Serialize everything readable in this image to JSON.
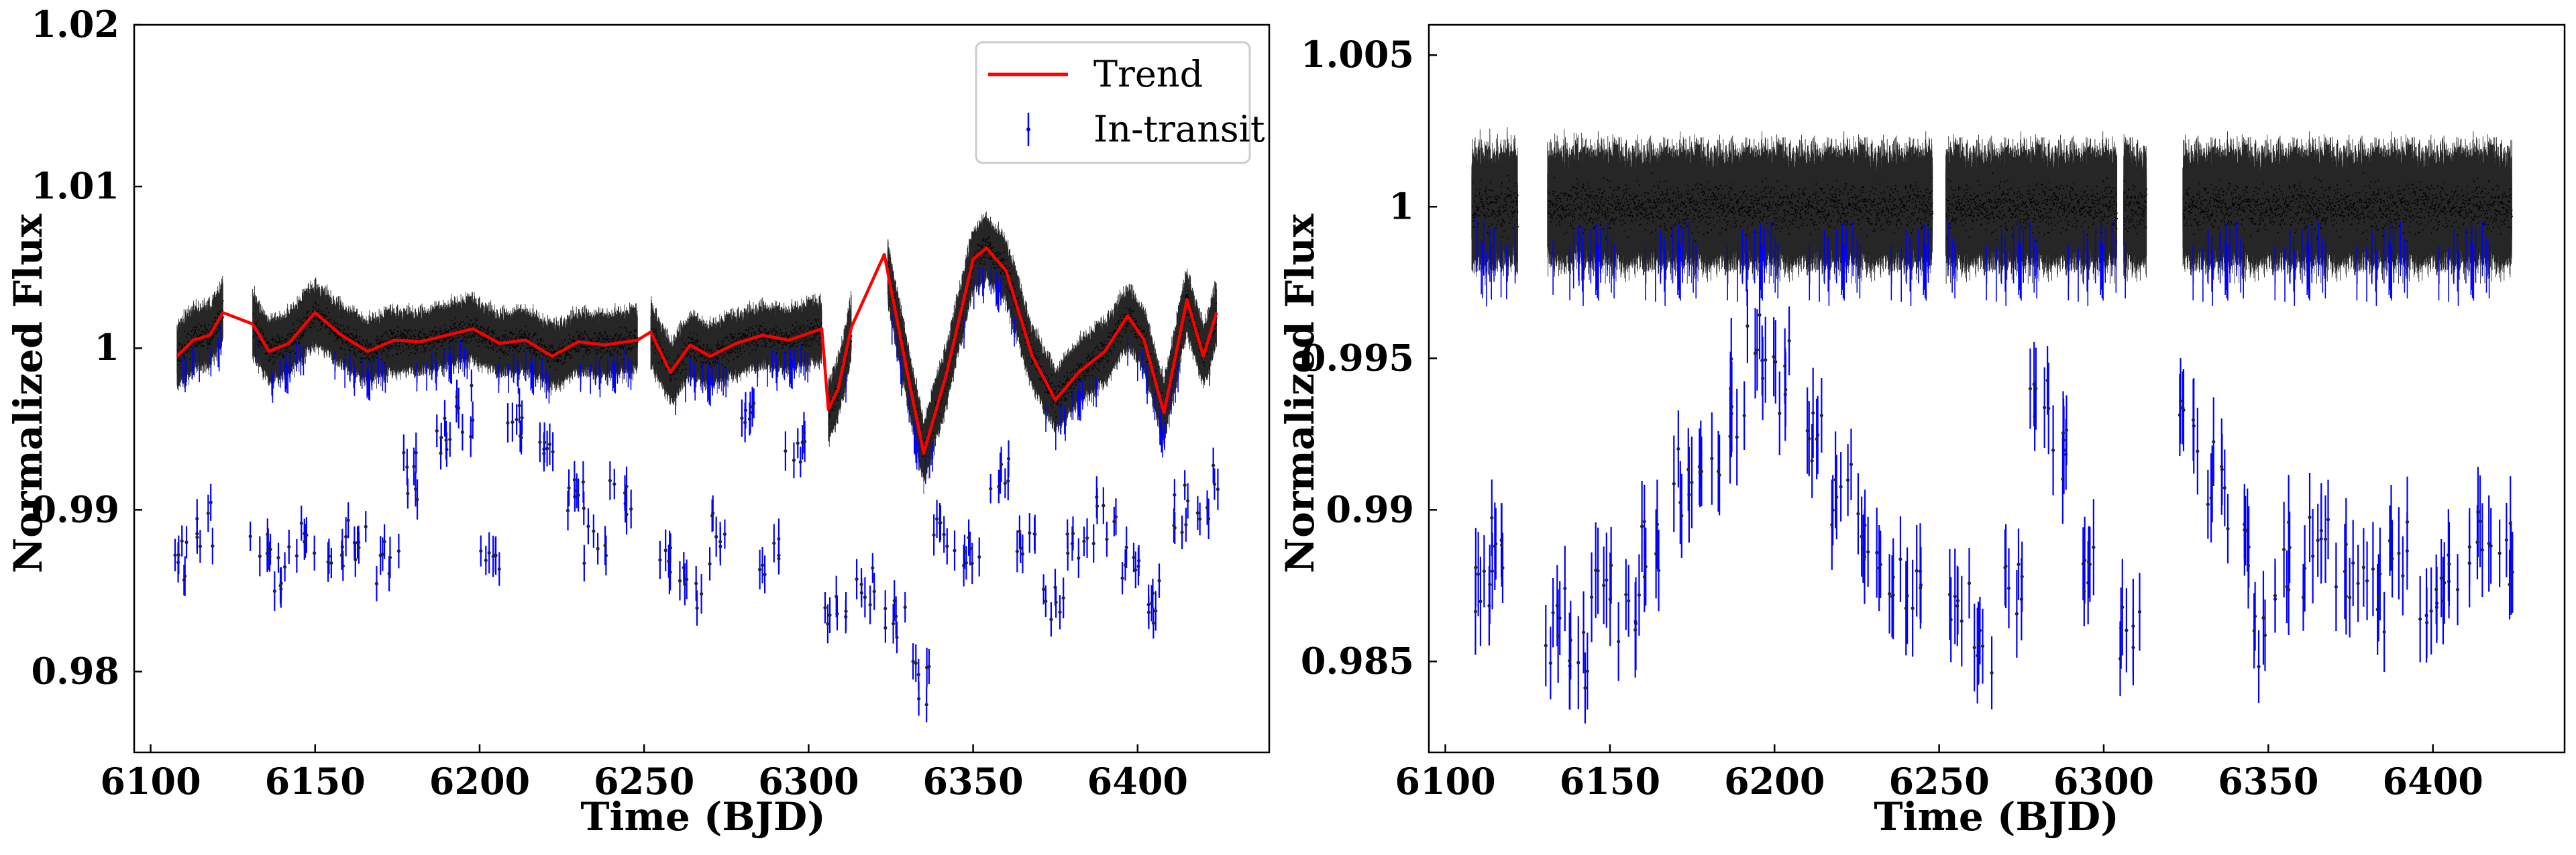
{
  "chart_data": [
    {
      "type": "scatter",
      "xlabel": "Time (BJD)",
      "ylabel": "Normalized Flux",
      "xlim": [
        6095,
        6440
      ],
      "ylim": [
        0.975,
        1.02
      ],
      "xticks": [
        6100,
        6150,
        6200,
        6250,
        6300,
        6350,
        6400
      ],
      "xtick_labels": [
        "6100",
        "6150",
        "6200",
        "6250",
        "6300",
        "6350",
        "6400"
      ],
      "yticks": [
        0.98,
        0.99,
        1.0,
        1.01,
        1.02
      ],
      "ytick_labels": [
        "0.98",
        "0.99",
        "1",
        "1.01",
        "1.02"
      ],
      "legend_position": "top-right",
      "legend": [
        {
          "label": "Trend",
          "color": "#ff0000",
          "marker": "line"
        },
        {
          "label": "In-transit",
          "color": "#0000ff",
          "marker": "errorbar"
        }
      ],
      "segments": [
        [
          6108,
          6122
        ],
        [
          6131,
          6248
        ],
        [
          6252,
          6304
        ],
        [
          6306,
          6313
        ],
        [
          6324,
          6424
        ]
      ],
      "trend": {
        "name": "Trend",
        "color": "#ff0000",
        "x": [
          6108,
          6113,
          6118,
          6122,
          6131,
          6136,
          6142,
          6150,
          6158,
          6166,
          6174,
          6182,
          6190,
          6198,
          6206,
          6214,
          6222,
          6230,
          6238,
          6248,
          6252,
          6258,
          6264,
          6270,
          6278,
          6286,
          6294,
          6304,
          6306,
          6309,
          6313,
          6323,
          6330,
          6335,
          6342,
          6350,
          6354,
          6360,
          6368,
          6375,
          6382,
          6390,
          6397,
          6402,
          6408,
          6415,
          6420,
          6424
        ],
        "y": [
          0.9995,
          1.0005,
          1.0008,
          1.0022,
          1.0015,
          0.9998,
          1.0003,
          1.0022,
          1.0008,
          0.9998,
          1.0005,
          1.0004,
          1.0008,
          1.0012,
          1.0003,
          1.0005,
          0.9995,
          1.0004,
          1.0002,
          1.0005,
          1.001,
          0.9985,
          1.0002,
          0.9995,
          1.0003,
          1.0008,
          1.0005,
          1.0012,
          0.9962,
          0.9975,
          1.0013,
          1.0058,
          0.9985,
          0.9935,
          0.9985,
          1.0055,
          1.0062,
          1.0048,
          0.9995,
          0.9968,
          0.9985,
          0.9998,
          1.002,
          1.0005,
          0.996,
          1.003,
          0.9995,
          1.0022
        ]
      },
      "in_transit_sample": {
        "name": "In-transit",
        "color": "#0000ff",
        "x": [
          6110,
          6116,
          6133,
          6140,
          6147,
          6156,
          6163,
          6172,
          6180,
          6188,
          6195,
          6203,
          6212,
          6220,
          6228,
          6235,
          6243,
          6256,
          6264,
          6272,
          6280,
          6288,
          6296,
          6308,
          6318,
          6326,
          6334,
          6341,
          6349,
          6358,
          6366,
          6374,
          6382,
          6390,
          6398,
          6406,
          6414,
          6421
        ],
        "y": [
          0.9872,
          0.9891,
          0.9875,
          0.9862,
          0.9878,
          0.9868,
          0.9883,
          0.9872,
          0.9925,
          0.9945,
          0.9958,
          0.987,
          0.9952,
          0.994,
          0.9905,
          0.988,
          0.9912,
          0.9868,
          0.9855,
          0.9881,
          0.9958,
          0.9872,
          0.9942,
          0.9843,
          0.9852,
          0.9831,
          0.98,
          0.9882,
          0.9872,
          0.992,
          0.988,
          0.9843,
          0.9876,
          0.9888,
          0.9872,
          0.9842,
          0.9895,
          0.991
        ]
      }
    },
    {
      "type": "scatter",
      "xlabel": "Time (BJD)",
      "ylabel": "Normalized Flux",
      "xlim": [
        6095,
        6440
      ],
      "ylim": [
        0.982,
        1.006
      ],
      "xticks": [
        6100,
        6150,
        6200,
        6250,
        6300,
        6350,
        6400
      ],
      "xtick_labels": [
        "6100",
        "6150",
        "6200",
        "6250",
        "6300",
        "6350",
        "6400"
      ],
      "yticks": [
        0.985,
        0.99,
        0.995,
        1.0,
        1.005
      ],
      "ytick_labels": [
        "0.985",
        "0.99",
        "0.995",
        "1",
        "1.005"
      ],
      "segments": [
        [
          6108,
          6122
        ],
        [
          6131,
          6248
        ],
        [
          6252,
          6304
        ],
        [
          6306,
          6313
        ],
        [
          6324,
          6424
        ]
      ],
      "in_transit_sample": {
        "name": "In-transit",
        "color": "#0000ff",
        "x": [
          6110,
          6116,
          6133,
          6140,
          6147,
          6156,
          6163,
          6172,
          6180,
          6188,
          6195,
          6203,
          6212,
          6220,
          6228,
          6235,
          6243,
          6256,
          6264,
          6272,
          6280,
          6288,
          6296,
          6308,
          6326,
          6334,
          6341,
          6349,
          6358,
          6366,
          6374,
          6382,
          6390,
          6398,
          6406,
          6414,
          6421
        ],
        "y": [
          0.9875,
          0.9892,
          0.9862,
          0.985,
          0.9875,
          0.9868,
          0.9885,
          0.9905,
          0.992,
          0.9935,
          0.9952,
          0.9945,
          0.9925,
          0.9905,
          0.989,
          0.988,
          0.9875,
          0.9868,
          0.9858,
          0.988,
          0.9935,
          0.992,
          0.988,
          0.9862,
          0.993,
          0.991,
          0.989,
          0.9865,
          0.988,
          0.9895,
          0.988,
          0.987,
          0.9885,
          0.987,
          0.988,
          0.989,
          0.9885
        ]
      }
    }
  ]
}
